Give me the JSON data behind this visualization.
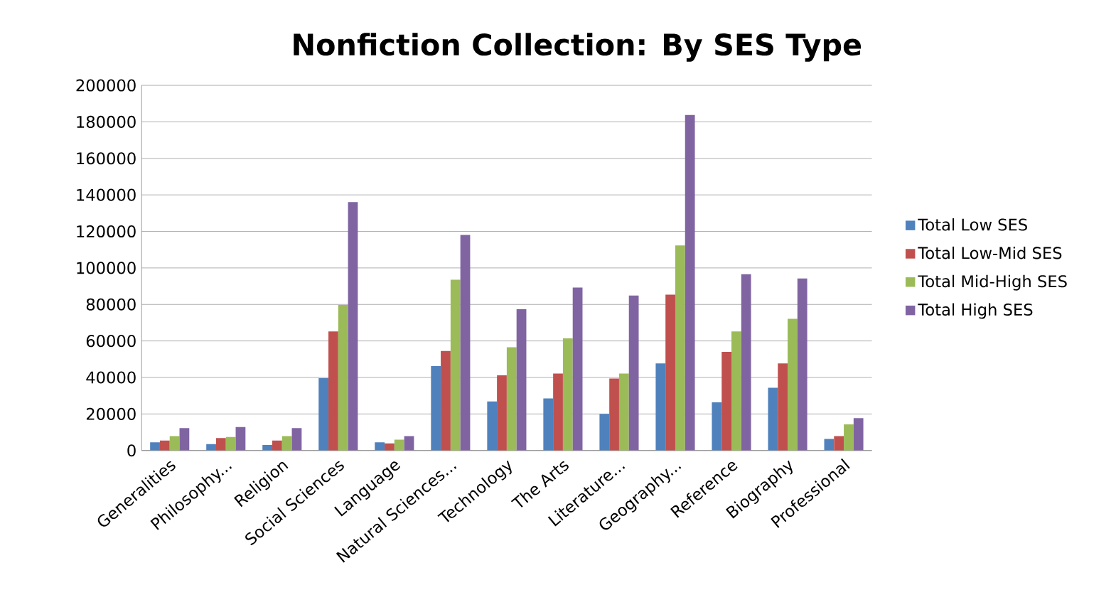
{
  "chart_data": {
    "type": "bar",
    "title": "Nonfiction Collection: By SES Type",
    "categories": [
      "Generalities",
      "Philosophy...",
      "Religion",
      "Social Sciences",
      "Language",
      "Natural Sciences...",
      "Technology",
      "The Arts",
      "Literature...",
      "Geography...",
      "Reference",
      "Biography",
      "Professional"
    ],
    "series": [
      {
        "name": "Total Low SES",
        "color": "#4f81bd",
        "values": [
          4500,
          3500,
          3000,
          39600,
          4500,
          46200,
          26900,
          28500,
          20000,
          47700,
          26400,
          34400,
          6300
        ]
      },
      {
        "name": "Total Low-Mid SES",
        "color": "#c0504d",
        "values": [
          5400,
          6800,
          5400,
          65200,
          3900,
          54500,
          41200,
          42100,
          39400,
          85400,
          54000,
          47700,
          7900
        ]
      },
      {
        "name": "Total Mid-High SES",
        "color": "#9bbb59",
        "values": [
          7900,
          7400,
          7900,
          79700,
          5900,
          93500,
          56500,
          61400,
          42100,
          112300,
          65200,
          72100,
          14300
        ]
      },
      {
        "name": "Total High SES",
        "color": "#8064a2",
        "values": [
          12300,
          12800,
          12300,
          136100,
          7900,
          118100,
          77400,
          89300,
          84900,
          183800,
          96600,
          94200,
          17700
        ]
      }
    ],
    "ylim": [
      0,
      200000
    ],
    "yticks": [
      0,
      20000,
      40000,
      60000,
      80000,
      100000,
      120000,
      140000,
      160000,
      180000,
      200000
    ],
    "grid": "y",
    "legend": "right"
  }
}
